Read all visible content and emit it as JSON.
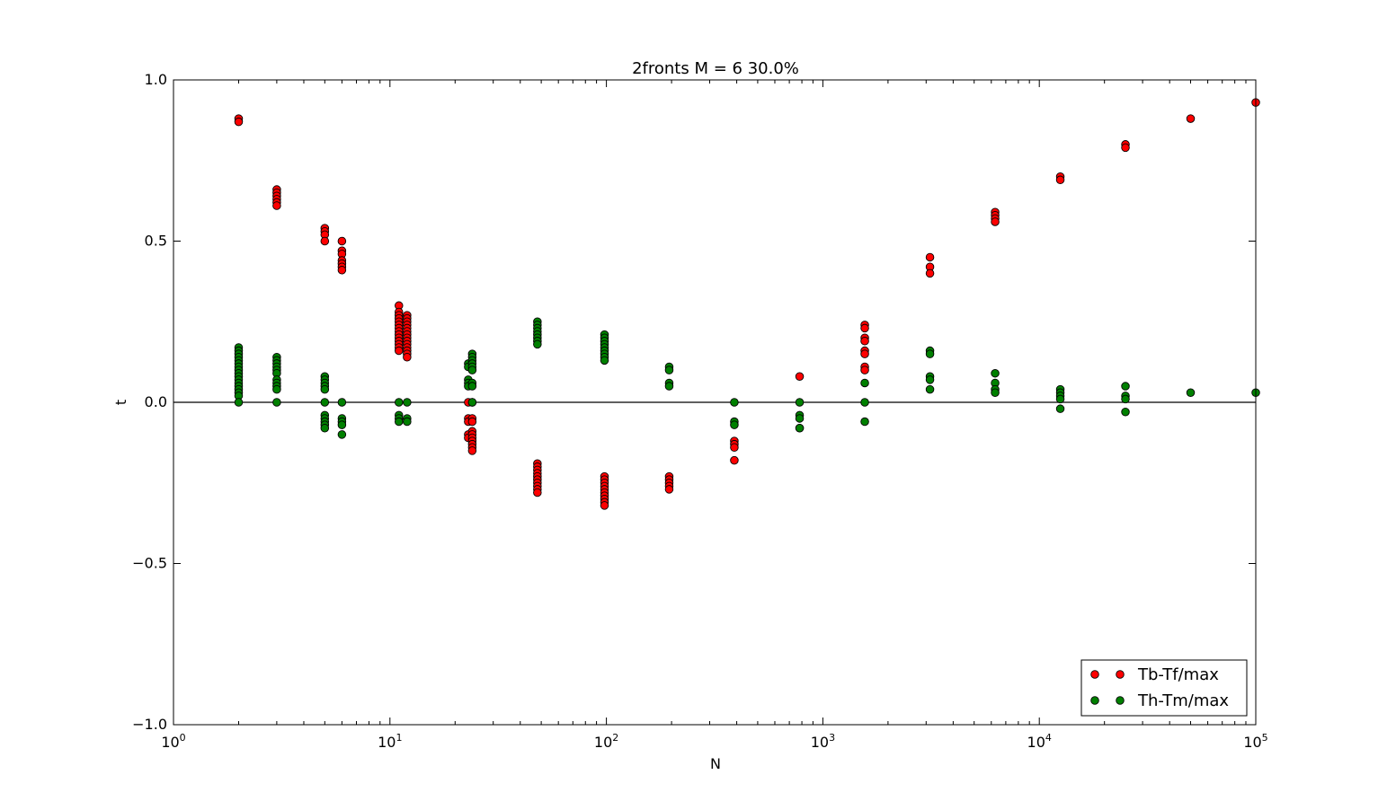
{
  "chart_data": {
    "type": "scatter",
    "title": "2fronts M = 6 30.0%",
    "xlabel": "N",
    "ylabel": "t",
    "xscale": "log",
    "xlim": [
      1,
      100000
    ],
    "ylim": [
      -1.0,
      1.0
    ],
    "grid": false,
    "legend_position": "bottom-right",
    "x_tick_labels": [
      {
        "base": "10",
        "exp": "0",
        "value": 1
      },
      {
        "base": "10",
        "exp": "1",
        "value": 10
      },
      {
        "base": "10",
        "exp": "2",
        "value": 100
      },
      {
        "base": "10",
        "exp": "3",
        "value": 1000
      },
      {
        "base": "10",
        "exp": "4",
        "value": 10000
      },
      {
        "base": "10",
        "exp": "5",
        "value": 100000
      }
    ],
    "y_tick_labels": [
      {
        "label": "1.0",
        "value": 1.0
      },
      {
        "label": "0.5",
        "value": 0.5
      },
      {
        "label": "0.0",
        "value": 0.0
      },
      {
        "label": "−0.5",
        "value": -0.5
      },
      {
        "label": "−1.0",
        "value": -1.0
      }
    ],
    "reference_line_y": 0,
    "series": [
      {
        "name": "Tb-Tf/max",
        "color": "#ff0000",
        "points": [
          [
            2,
            0.88
          ],
          [
            2,
            0.87
          ],
          [
            3,
            0.66
          ],
          [
            3,
            0.65
          ],
          [
            3,
            0.64
          ],
          [
            3,
            0.63
          ],
          [
            3,
            0.62
          ],
          [
            3,
            0.61
          ],
          [
            5,
            0.54
          ],
          [
            5,
            0.53
          ],
          [
            5,
            0.52
          ],
          [
            5,
            0.5
          ],
          [
            6,
            0.5
          ],
          [
            6,
            0.47
          ],
          [
            6,
            0.46
          ],
          [
            6,
            0.44
          ],
          [
            6,
            0.43
          ],
          [
            6,
            0.42
          ],
          [
            6,
            0.41
          ],
          [
            11,
            0.3
          ],
          [
            11,
            0.28
          ],
          [
            11,
            0.27
          ],
          [
            11,
            0.26
          ],
          [
            11,
            0.25
          ],
          [
            11,
            0.24
          ],
          [
            11,
            0.23
          ],
          [
            11,
            0.22
          ],
          [
            11,
            0.21
          ],
          [
            11,
            0.2
          ],
          [
            11,
            0.19
          ],
          [
            11,
            0.18
          ],
          [
            11,
            0.17
          ],
          [
            11,
            0.16
          ],
          [
            12,
            0.27
          ],
          [
            12,
            0.26
          ],
          [
            12,
            0.25
          ],
          [
            12,
            0.24
          ],
          [
            12,
            0.23
          ],
          [
            12,
            0.22
          ],
          [
            12,
            0.21
          ],
          [
            12,
            0.2
          ],
          [
            12,
            0.19
          ],
          [
            12,
            0.18
          ],
          [
            12,
            0.17
          ],
          [
            12,
            0.16
          ],
          [
            12,
            0.15
          ],
          [
            12,
            0.14
          ],
          [
            23,
            0.0
          ],
          [
            23,
            -0.05
          ],
          [
            23,
            -0.06
          ],
          [
            23,
            -0.1
          ],
          [
            23,
            -0.11
          ],
          [
            24,
            0.0
          ],
          [
            24,
            -0.05
          ],
          [
            24,
            -0.06
          ],
          [
            24,
            -0.09
          ],
          [
            24,
            -0.1
          ],
          [
            24,
            -0.11
          ],
          [
            24,
            -0.12
          ],
          [
            24,
            -0.13
          ],
          [
            24,
            -0.14
          ],
          [
            24,
            -0.15
          ],
          [
            48,
            -0.19
          ],
          [
            48,
            -0.2
          ],
          [
            48,
            -0.21
          ],
          [
            48,
            -0.22
          ],
          [
            48,
            -0.23
          ],
          [
            48,
            -0.24
          ],
          [
            48,
            -0.25
          ],
          [
            48,
            -0.26
          ],
          [
            48,
            -0.27
          ],
          [
            48,
            -0.28
          ],
          [
            98,
            -0.23
          ],
          [
            98,
            -0.24
          ],
          [
            98,
            -0.25
          ],
          [
            98,
            -0.26
          ],
          [
            98,
            -0.27
          ],
          [
            98,
            -0.28
          ],
          [
            98,
            -0.29
          ],
          [
            98,
            -0.3
          ],
          [
            98,
            -0.31
          ],
          [
            98,
            -0.32
          ],
          [
            195,
            -0.23
          ],
          [
            195,
            -0.24
          ],
          [
            195,
            -0.25
          ],
          [
            195,
            -0.26
          ],
          [
            195,
            -0.27
          ],
          [
            390,
            -0.12
          ],
          [
            390,
            -0.13
          ],
          [
            390,
            -0.14
          ],
          [
            390,
            -0.18
          ],
          [
            781,
            0.08
          ],
          [
            781,
            -0.08
          ],
          [
            1562,
            0.24
          ],
          [
            1562,
            0.23
          ],
          [
            1562,
            0.2
          ],
          [
            1562,
            0.19
          ],
          [
            1562,
            0.16
          ],
          [
            1562,
            0.15
          ],
          [
            1562,
            0.11
          ],
          [
            1562,
            0.1
          ],
          [
            3125,
            0.45
          ],
          [
            3125,
            0.42
          ],
          [
            3125,
            0.4
          ],
          [
            6250,
            0.59
          ],
          [
            6250,
            0.58
          ],
          [
            6250,
            0.57
          ],
          [
            6250,
            0.56
          ],
          [
            12500,
            0.7
          ],
          [
            12500,
            0.69
          ],
          [
            25000,
            0.8
          ],
          [
            25000,
            0.79
          ],
          [
            50000,
            0.88
          ],
          [
            100000,
            0.93
          ]
        ]
      },
      {
        "name": "Th-Tm/max",
        "color": "#008000",
        "points": [
          [
            2,
            0.17
          ],
          [
            2,
            0.16
          ],
          [
            2,
            0.15
          ],
          [
            2,
            0.14
          ],
          [
            2,
            0.13
          ],
          [
            2,
            0.12
          ],
          [
            2,
            0.11
          ],
          [
            2,
            0.1
          ],
          [
            2,
            0.09
          ],
          [
            2,
            0.08
          ],
          [
            2,
            0.07
          ],
          [
            2,
            0.06
          ],
          [
            2,
            0.05
          ],
          [
            2,
            0.04
          ],
          [
            2,
            0.03
          ],
          [
            2,
            0.02
          ],
          [
            2,
            0.0
          ],
          [
            3,
            0.14
          ],
          [
            3,
            0.13
          ],
          [
            3,
            0.12
          ],
          [
            3,
            0.11
          ],
          [
            3,
            0.1
          ],
          [
            3,
            0.09
          ],
          [
            3,
            0.07
          ],
          [
            3,
            0.06
          ],
          [
            3,
            0.05
          ],
          [
            3,
            0.04
          ],
          [
            3,
            0.0
          ],
          [
            5,
            0.08
          ],
          [
            5,
            0.07
          ],
          [
            5,
            0.06
          ],
          [
            5,
            0.05
          ],
          [
            5,
            0.04
          ],
          [
            5,
            0.0
          ],
          [
            5,
            -0.04
          ],
          [
            5,
            -0.05
          ],
          [
            5,
            -0.06
          ],
          [
            5,
            -0.07
          ],
          [
            5,
            -0.08
          ],
          [
            6,
            0.0
          ],
          [
            6,
            -0.05
          ],
          [
            6,
            -0.06
          ],
          [
            6,
            -0.07
          ],
          [
            6,
            -0.1
          ],
          [
            11,
            0.0
          ],
          [
            11,
            -0.04
          ],
          [
            11,
            -0.05
          ],
          [
            11,
            -0.06
          ],
          [
            12,
            0.0
          ],
          [
            12,
            -0.05
          ],
          [
            12,
            -0.06
          ],
          [
            23,
            0.12
          ],
          [
            23,
            0.11
          ],
          [
            23,
            0.07
          ],
          [
            23,
            0.06
          ],
          [
            23,
            0.05
          ],
          [
            24,
            0.15
          ],
          [
            24,
            0.14
          ],
          [
            24,
            0.13
          ],
          [
            24,
            0.12
          ],
          [
            24,
            0.11
          ],
          [
            24,
            0.1
          ],
          [
            24,
            0.06
          ],
          [
            24,
            0.05
          ],
          [
            24,
            0.0
          ],
          [
            48,
            0.25
          ],
          [
            48,
            0.24
          ],
          [
            48,
            0.23
          ],
          [
            48,
            0.22
          ],
          [
            48,
            0.21
          ],
          [
            48,
            0.2
          ],
          [
            48,
            0.19
          ],
          [
            48,
            0.18
          ],
          [
            98,
            0.21
          ],
          [
            98,
            0.2
          ],
          [
            98,
            0.19
          ],
          [
            98,
            0.18
          ],
          [
            98,
            0.17
          ],
          [
            98,
            0.16
          ],
          [
            98,
            0.15
          ],
          [
            98,
            0.14
          ],
          [
            98,
            0.13
          ],
          [
            195,
            0.11
          ],
          [
            195,
            0.1
          ],
          [
            195,
            0.06
          ],
          [
            195,
            0.05
          ],
          [
            390,
            0.0
          ],
          [
            390,
            -0.06
          ],
          [
            390,
            -0.07
          ],
          [
            781,
            0.0
          ],
          [
            781,
            -0.04
          ],
          [
            781,
            -0.05
          ],
          [
            781,
            -0.08
          ],
          [
            1562,
            0.06
          ],
          [
            1562,
            0.0
          ],
          [
            1562,
            -0.06
          ],
          [
            3125,
            0.16
          ],
          [
            3125,
            0.15
          ],
          [
            3125,
            0.08
          ],
          [
            3125,
            0.07
          ],
          [
            3125,
            0.04
          ],
          [
            6250,
            0.09
          ],
          [
            6250,
            0.06
          ],
          [
            6250,
            0.04
          ],
          [
            6250,
            0.03
          ],
          [
            12500,
            0.04
          ],
          [
            12500,
            0.03
          ],
          [
            12500,
            0.02
          ],
          [
            12500,
            0.01
          ],
          [
            12500,
            -0.02
          ],
          [
            25000,
            0.05
          ],
          [
            25000,
            0.02
          ],
          [
            25000,
            0.01
          ],
          [
            25000,
            -0.03
          ],
          [
            50000,
            0.03
          ],
          [
            100000,
            0.03
          ]
        ]
      }
    ]
  }
}
